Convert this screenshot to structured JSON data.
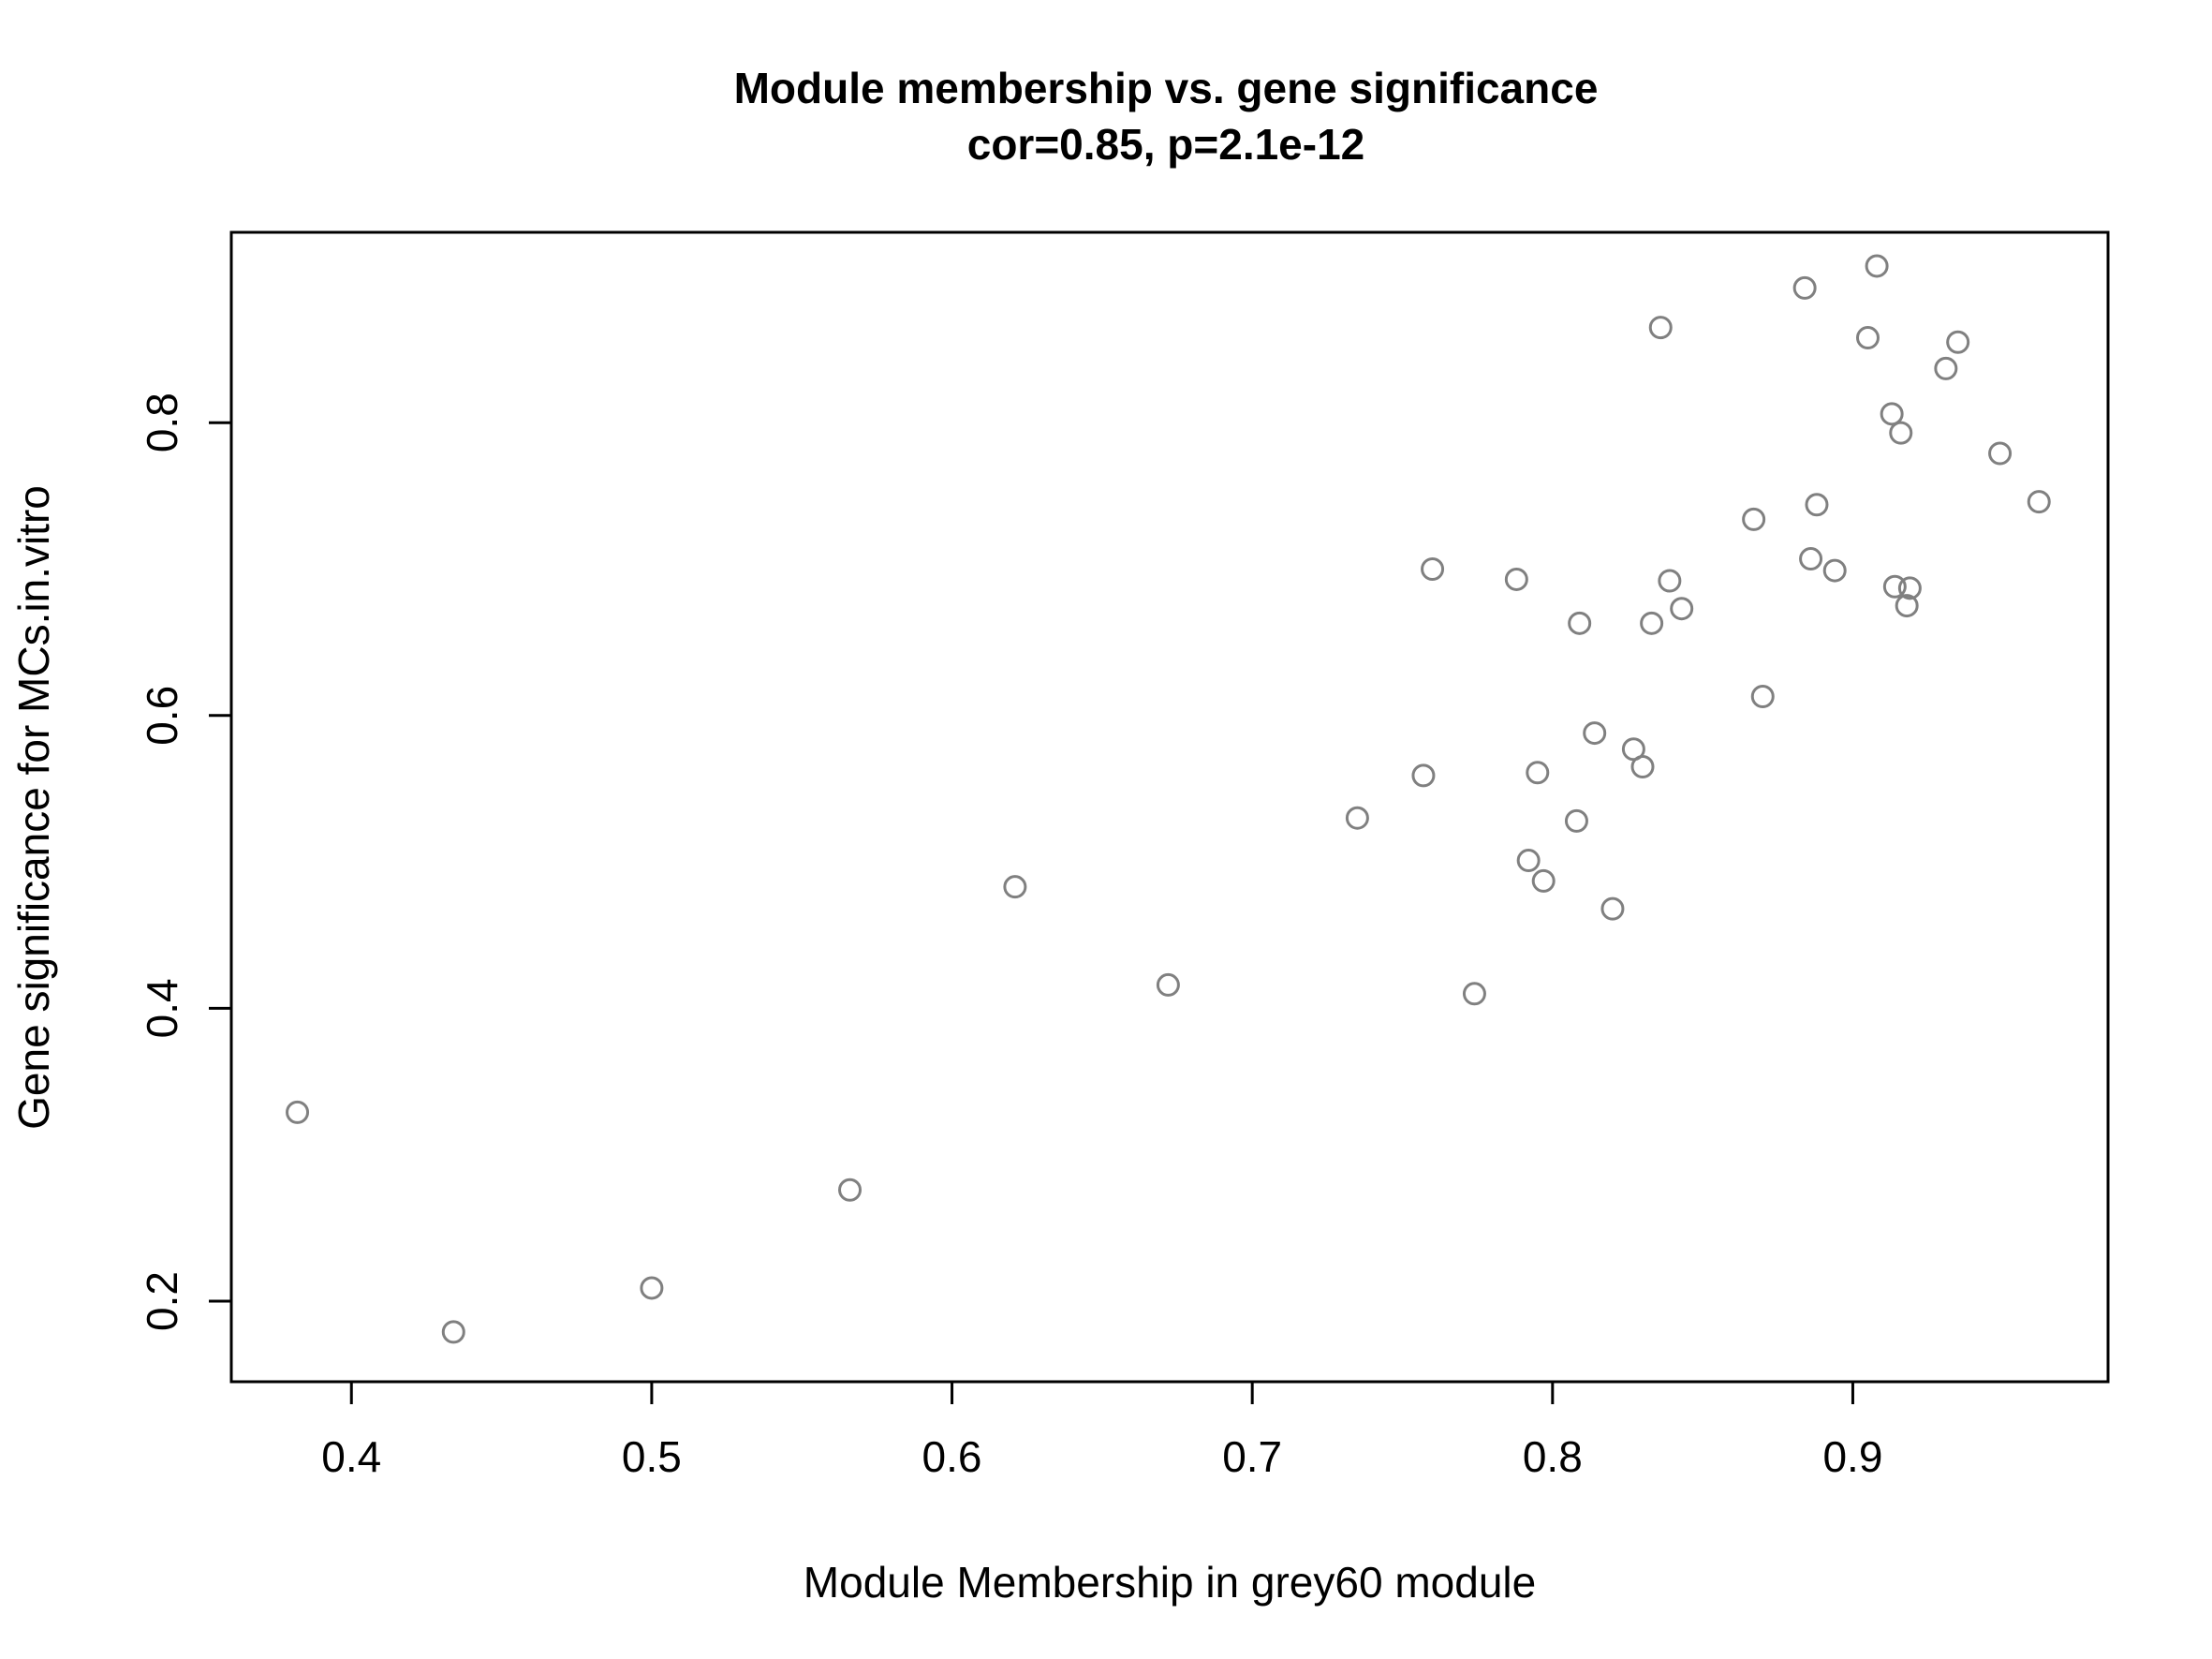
{
  "chart_data": {
    "type": "scatter",
    "title": "Module membership vs. gene significance",
    "subtitle": "cor=0.85, p=2.1e-12",
    "xlabel": "Module Membership in grey60 module",
    "ylabel": "Gene significance for MCs.in.vitro",
    "xlim": [
      0.36,
      0.985
    ],
    "ylim": [
      0.145,
      0.93
    ],
    "xticks": [
      0.4,
      0.5,
      0.6,
      0.7,
      0.8,
      0.9
    ],
    "xtick_labels": [
      "0.4",
      "0.5",
      "0.6",
      "0.7",
      "0.8",
      "0.9"
    ],
    "yticks": [
      0.2,
      0.4,
      0.6,
      0.8
    ],
    "ytick_labels": [
      "0.2",
      "0.4",
      "0.6",
      "0.8"
    ],
    "grid": false,
    "legend": "none",
    "marker": "open-circle",
    "marker_color": "#808080",
    "points": [
      {
        "x": 0.382,
        "y": 0.329
      },
      {
        "x": 0.434,
        "y": 0.179
      },
      {
        "x": 0.5,
        "y": 0.209
      },
      {
        "x": 0.566,
        "y": 0.276
      },
      {
        "x": 0.621,
        "y": 0.483
      },
      {
        "x": 0.672,
        "y": 0.416
      },
      {
        "x": 0.735,
        "y": 0.53
      },
      {
        "x": 0.757,
        "y": 0.559
      },
      {
        "x": 0.76,
        "y": 0.7
      },
      {
        "x": 0.774,
        "y": 0.41
      },
      {
        "x": 0.788,
        "y": 0.693
      },
      {
        "x": 0.792,
        "y": 0.501
      },
      {
        "x": 0.795,
        "y": 0.561
      },
      {
        "x": 0.797,
        "y": 0.487
      },
      {
        "x": 0.808,
        "y": 0.528
      },
      {
        "x": 0.809,
        "y": 0.663
      },
      {
        "x": 0.814,
        "y": 0.588
      },
      {
        "x": 0.82,
        "y": 0.468
      },
      {
        "x": 0.827,
        "y": 0.577
      },
      {
        "x": 0.83,
        "y": 0.565
      },
      {
        "x": 0.833,
        "y": 0.663
      },
      {
        "x": 0.836,
        "y": 0.865
      },
      {
        "x": 0.839,
        "y": 0.692
      },
      {
        "x": 0.843,
        "y": 0.673
      },
      {
        "x": 0.867,
        "y": 0.734
      },
      {
        "x": 0.87,
        "y": 0.613
      },
      {
        "x": 0.884,
        "y": 0.892
      },
      {
        "x": 0.886,
        "y": 0.707
      },
      {
        "x": 0.888,
        "y": 0.744
      },
      {
        "x": 0.894,
        "y": 0.699
      },
      {
        "x": 0.905,
        "y": 0.858
      },
      {
        "x": 0.908,
        "y": 0.907
      },
      {
        "x": 0.913,
        "y": 0.806
      },
      {
        "x": 0.914,
        "y": 0.688
      },
      {
        "x": 0.916,
        "y": 0.793
      },
      {
        "x": 0.918,
        "y": 0.675
      },
      {
        "x": 0.919,
        "y": 0.687
      },
      {
        "x": 0.931,
        "y": 0.837
      },
      {
        "x": 0.935,
        "y": 0.855
      },
      {
        "x": 0.949,
        "y": 0.779
      },
      {
        "x": 0.962,
        "y": 0.746
      }
    ]
  }
}
